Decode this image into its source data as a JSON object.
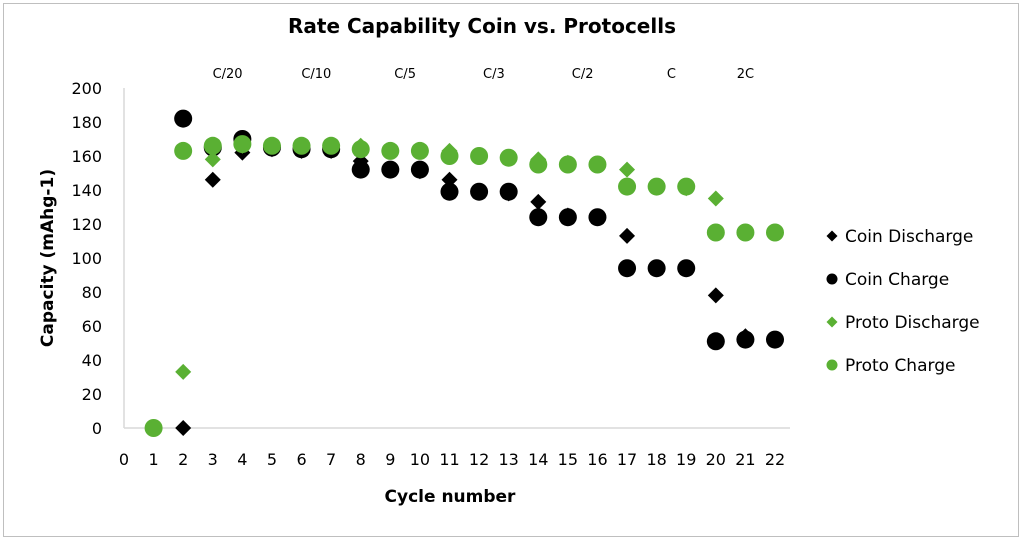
{
  "chart_data": {
    "type": "scatter",
    "title": "Rate Capability Coin vs. Protocells",
    "xlabel": "Cycle number",
    "ylabel": "Capacity (mAhg-1)",
    "xlim": [
      0,
      22
    ],
    "ylim": [
      0,
      200
    ],
    "x_ticks": [
      0,
      1,
      2,
      3,
      4,
      5,
      6,
      7,
      8,
      9,
      10,
      11,
      12,
      13,
      14,
      15,
      16,
      17,
      18,
      19,
      20,
      21,
      22
    ],
    "y_ticks": [
      0,
      20,
      40,
      60,
      80,
      100,
      120,
      140,
      160,
      180,
      200
    ],
    "grid": false,
    "legend_position": "right",
    "rate_labels": [
      {
        "label": "C/20",
        "x": 3.5
      },
      {
        "label": "C/10",
        "x": 6.5
      },
      {
        "label": "C/5",
        "x": 9.5
      },
      {
        "label": "C/3",
        "x": 12.5
      },
      {
        "label": "C/2",
        "x": 15.5
      },
      {
        "label": "C",
        "x": 18.5
      },
      {
        "label": "2C",
        "x": 21
      }
    ],
    "series": [
      {
        "name": "Coin Discharge",
        "marker": "diamond",
        "color": "#000000",
        "x": [
          2,
          3,
          4,
          5,
          6,
          7,
          8,
          9,
          10,
          11,
          12,
          13,
          14,
          15,
          16,
          17,
          18,
          19,
          20,
          21,
          22
        ],
        "y": [
          0,
          146,
          162,
          164,
          163,
          163,
          157,
          152,
          151,
          146,
          139,
          138,
          133,
          125,
          124,
          113,
          94,
          94,
          78,
          54,
          52
        ]
      },
      {
        "name": "Coin Charge",
        "marker": "circle",
        "color": "#000000",
        "x": [
          2,
          3,
          4,
          5,
          6,
          7,
          8,
          9,
          10,
          11,
          12,
          13,
          14,
          15,
          16,
          17,
          18,
          19,
          20,
          21,
          22
        ],
        "y": [
          182,
          165,
          170,
          165,
          164,
          164,
          152,
          152,
          152,
          139,
          139,
          139,
          124,
          124,
          124,
          94,
          94,
          94,
          51,
          52,
          52
        ]
      },
      {
        "name": "Proto Discharge",
        "marker": "diamond",
        "color": "#5ab033",
        "x": [
          2,
          3,
          4,
          5,
          6,
          7,
          8,
          9,
          10,
          11,
          12,
          13,
          14,
          15,
          16,
          17,
          18,
          19,
          20,
          21,
          22
        ],
        "y": [
          33,
          158,
          166,
          166,
          166,
          166,
          166,
          163,
          163,
          163,
          160,
          159,
          158,
          156,
          155,
          152,
          142,
          141,
          135,
          115,
          115
        ]
      },
      {
        "name": "Proto Charge",
        "marker": "circle",
        "color": "#5ab033",
        "x": [
          1,
          2,
          3,
          4,
          5,
          6,
          7,
          8,
          9,
          10,
          11,
          12,
          13,
          14,
          15,
          16,
          17,
          18,
          19,
          20,
          21,
          22
        ],
        "y": [
          0,
          163,
          166,
          167,
          166,
          166,
          166,
          164,
          163,
          163,
          160,
          160,
          159,
          155,
          155,
          155,
          142,
          142,
          142,
          115,
          115,
          115
        ]
      }
    ]
  }
}
